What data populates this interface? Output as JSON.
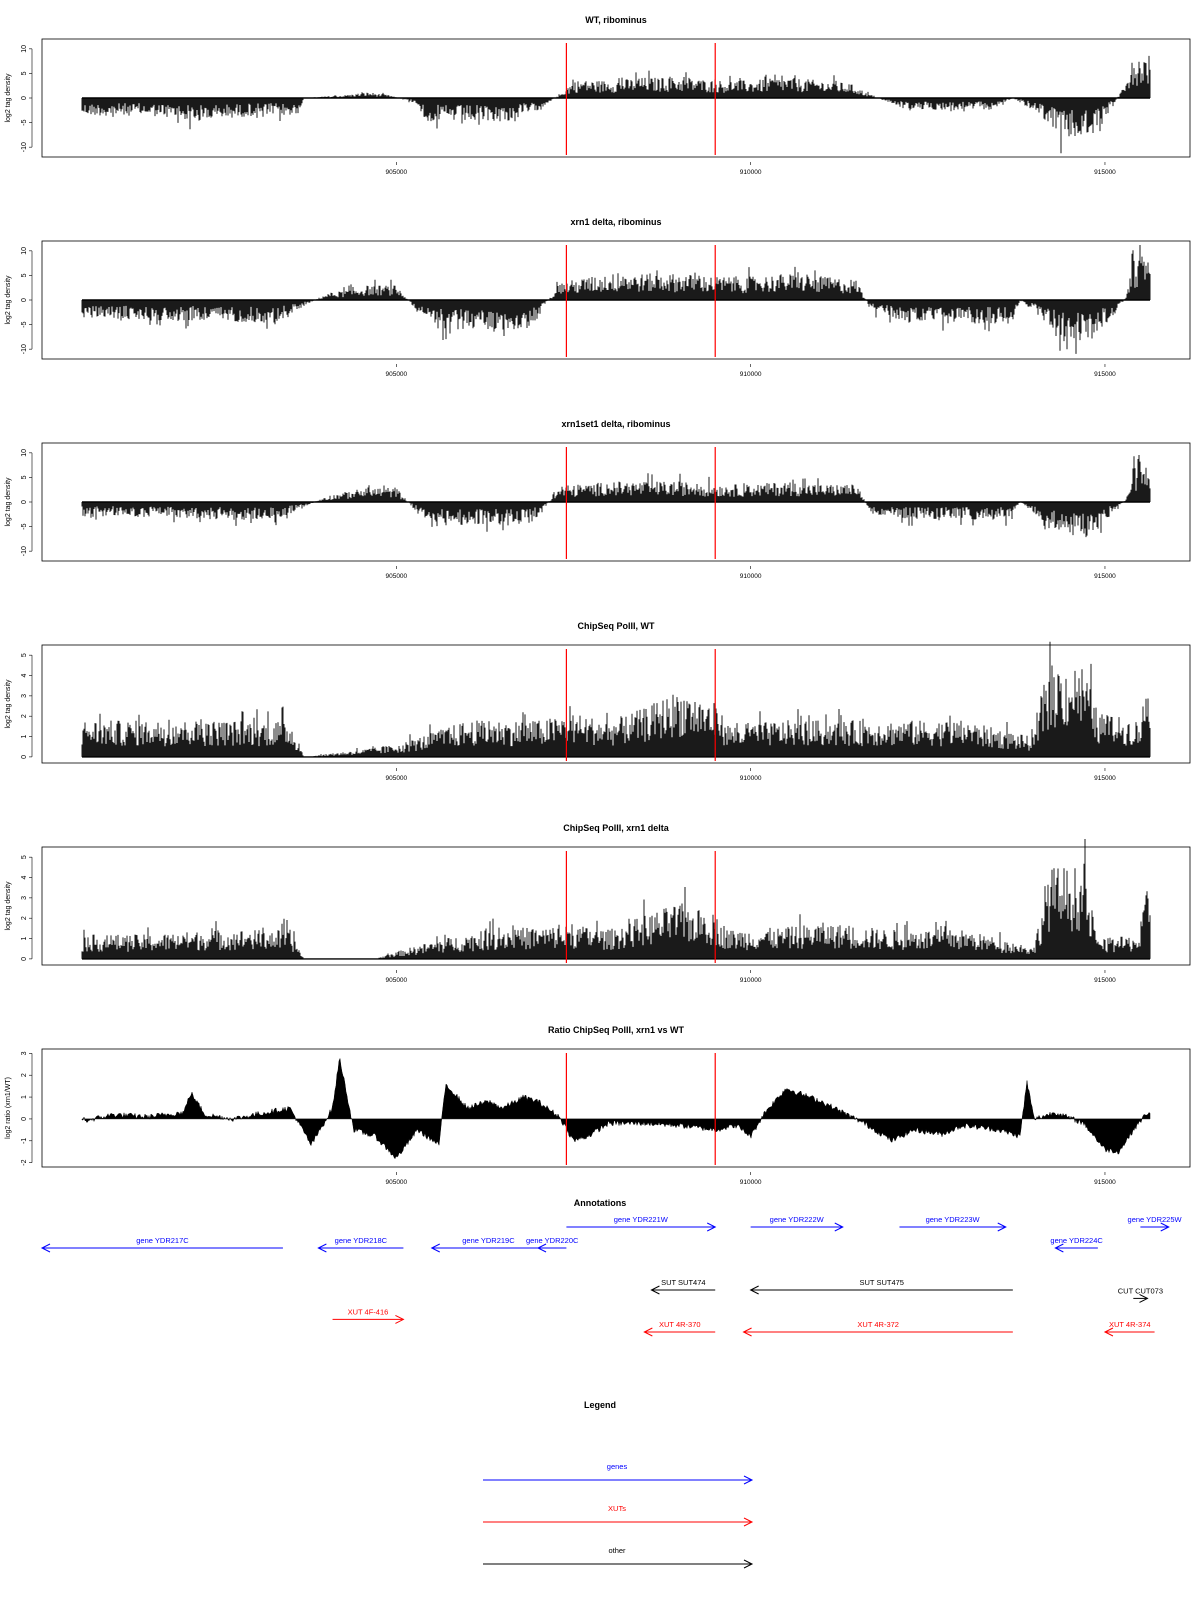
{
  "colors": {
    "gene": "#0000ff",
    "xut": "#ff0000",
    "other": "#000000",
    "marker": "#ff0000",
    "signal": "#000000"
  },
  "chart_data": [
    {
      "type": "bar",
      "title": "WT, ribominus",
      "ylabel": "log2 tag density",
      "xlim": [
        900000,
        916200
      ],
      "ylim": [
        -12,
        12
      ],
      "yticks": [
        -10,
        -5,
        0,
        5,
        10
      ],
      "ytick_labels": [
        "-10",
        "-5",
        "0",
        "5",
        "10"
      ],
      "xticks": [
        905000,
        910000,
        915000
      ],
      "xtick_labels": [
        "905000",
        "910000",
        "915000"
      ],
      "markers": [
        907400,
        909500
      ],
      "profile": [
        [
          900000,
          0
        ],
        [
          900600,
          -3
        ],
        [
          901500,
          -3
        ],
        [
          902200,
          -4
        ],
        [
          903000,
          -3
        ],
        [
          903600,
          -3
        ],
        [
          903700,
          0
        ],
        [
          904300,
          0.5
        ],
        [
          904600,
          1
        ],
        [
          904900,
          0.5
        ],
        [
          905300,
          -1
        ],
        [
          905400,
          -4
        ],
        [
          906000,
          -4
        ],
        [
          906600,
          -4
        ],
        [
          907000,
          -2
        ],
        [
          907300,
          0.5
        ],
        [
          907500,
          3
        ],
        [
          908000,
          3
        ],
        [
          908500,
          3.5
        ],
        [
          909000,
          3.5
        ],
        [
          909500,
          3
        ],
        [
          910000,
          3
        ],
        [
          910500,
          3.5
        ],
        [
          911000,
          3
        ],
        [
          911400,
          2.5
        ],
        [
          911700,
          0.5
        ],
        [
          912200,
          -2
        ],
        [
          912800,
          -2
        ],
        [
          913400,
          -2
        ],
        [
          913700,
          0
        ],
        [
          914100,
          -3
        ],
        [
          914400,
          -7
        ],
        [
          914800,
          -7
        ],
        [
          915000,
          -3
        ],
        [
          915200,
          0.5
        ],
        [
          915400,
          7
        ],
        [
          915900,
          8
        ],
        [
          916000,
          0
        ]
      ]
    },
    {
      "type": "bar",
      "title": "xrn1 delta, ribominus",
      "ylabel": "log2 tag density",
      "xlim": [
        900000,
        916200
      ],
      "ylim": [
        -12,
        12
      ],
      "yticks": [
        -10,
        -5,
        0,
        5,
        10
      ],
      "ytick_labels": [
        "-10",
        "-5",
        "0",
        "5",
        "10"
      ],
      "xticks": [
        905000,
        910000,
        915000
      ],
      "xtick_labels": [
        "905000",
        "910000",
        "915000"
      ],
      "markers": [
        907400,
        909500
      ],
      "profile": [
        [
          900000,
          0
        ],
        [
          900600,
          -3
        ],
        [
          901500,
          -3.5
        ],
        [
          902500,
          -3.5
        ],
        [
          903300,
          -4
        ],
        [
          903700,
          -1
        ],
        [
          904000,
          1
        ],
        [
          904600,
          2.5
        ],
        [
          905000,
          2.5
        ],
        [
          905300,
          -2
        ],
        [
          905600,
          -5
        ],
        [
          906300,
          -5
        ],
        [
          906900,
          -5
        ],
        [
          907300,
          3
        ],
        [
          908000,
          4.5
        ],
        [
          908500,
          4.5
        ],
        [
          909000,
          4.5
        ],
        [
          909500,
          4
        ],
        [
          910000,
          4
        ],
        [
          910500,
          4.5
        ],
        [
          911000,
          4
        ],
        [
          911500,
          3.5
        ],
        [
          911700,
          -2
        ],
        [
          912300,
          -4
        ],
        [
          913000,
          -4
        ],
        [
          913700,
          -4
        ],
        [
          913800,
          0
        ],
        [
          914100,
          -3
        ],
        [
          914400,
          -7
        ],
        [
          914800,
          -7
        ],
        [
          915100,
          -3
        ],
        [
          915300,
          0.5
        ],
        [
          915400,
          7
        ],
        [
          915900,
          9
        ],
        [
          916000,
          0
        ]
      ]
    },
    {
      "type": "bar",
      "title": "xrn1set1 delta, ribominus",
      "ylabel": "log2 tag density",
      "xlim": [
        900000,
        916200
      ],
      "ylim": [
        -12,
        12
      ],
      "yticks": [
        -10,
        -5,
        0,
        5,
        10
      ],
      "ytick_labels": [
        "-10",
        "-5",
        "0",
        "5",
        "10"
      ],
      "xticks": [
        905000,
        910000,
        915000
      ],
      "xtick_labels": [
        "905000",
        "910000",
        "915000"
      ],
      "markers": [
        907400,
        909500
      ],
      "profile": [
        [
          900000,
          0
        ],
        [
          900600,
          -2.5
        ],
        [
          901500,
          -2.5
        ],
        [
          902500,
          -3
        ],
        [
          903300,
          -3
        ],
        [
          903700,
          -1
        ],
        [
          904000,
          1
        ],
        [
          904600,
          2.5
        ],
        [
          905000,
          2.5
        ],
        [
          905300,
          -2
        ],
        [
          905600,
          -4
        ],
        [
          906300,
          -4
        ],
        [
          906900,
          -4
        ],
        [
          907300,
          2.5
        ],
        [
          908000,
          3.5
        ],
        [
          908500,
          3.5
        ],
        [
          909000,
          3.5
        ],
        [
          909500,
          3
        ],
        [
          910000,
          3
        ],
        [
          910500,
          3.5
        ],
        [
          911000,
          3
        ],
        [
          911500,
          3
        ],
        [
          911700,
          -2
        ],
        [
          912300,
          -3
        ],
        [
          913000,
          -3
        ],
        [
          913700,
          -3
        ],
        [
          913800,
          0
        ],
        [
          914100,
          -3
        ],
        [
          914400,
          -6
        ],
        [
          914800,
          -6
        ],
        [
          915100,
          -2
        ],
        [
          915300,
          0.5
        ],
        [
          915400,
          6
        ],
        [
          915900,
          7
        ],
        [
          916000,
          0
        ]
      ]
    },
    {
      "type": "bar",
      "title": "ChipSeq PolII, WT",
      "ylabel": "log2 tag density",
      "xlim": [
        900000,
        916200
      ],
      "ylim": [
        -0.3,
        5.5
      ],
      "yticks": [
        0,
        1,
        2,
        3,
        4,
        5
      ],
      "ytick_labels": [
        "0",
        "1",
        "2",
        "3",
        "4",
        "5"
      ],
      "xticks": [
        905000,
        910000,
        915000
      ],
      "xtick_labels": [
        "905000",
        "910000",
        "915000"
      ],
      "markers": [
        907400,
        909500
      ],
      "profile": [
        [
          900000,
          0
        ],
        [
          900600,
          1.5
        ],
        [
          901500,
          1.5
        ],
        [
          902500,
          1.5
        ],
        [
          903500,
          1.5
        ],
        [
          903700,
          0
        ],
        [
          904500,
          0.3
        ],
        [
          905000,
          0.5
        ],
        [
          905500,
          1
        ],
        [
          906000,
          1.5
        ],
        [
          906500,
          1.5
        ],
        [
          907000,
          1.5
        ],
        [
          907500,
          1.8
        ],
        [
          908000,
          1.5
        ],
        [
          908500,
          2
        ],
        [
          909000,
          2.8
        ],
        [
          909500,
          2.2
        ],
        [
          909700,
          1.3
        ],
        [
          910500,
          1.5
        ],
        [
          911000,
          1.5
        ],
        [
          912000,
          1.5
        ],
        [
          913000,
          1.5
        ],
        [
          914000,
          0.8
        ],
        [
          914200,
          3.8
        ],
        [
          914700,
          3.8
        ],
        [
          914900,
          1.8
        ],
        [
          915500,
          1.5
        ],
        [
          915600,
          3.5
        ],
        [
          916000,
          4.5
        ]
      ]
    },
    {
      "type": "bar",
      "title": "ChipSeq PolII, xrn1 delta",
      "ylabel": "log2 tag density",
      "xlim": [
        900000,
        916200
      ],
      "ylim": [
        -0.3,
        5.5
      ],
      "yticks": [
        0,
        1,
        2,
        3,
        4,
        5
      ],
      "ytick_labels": [
        "0",
        "1",
        "2",
        "3",
        "4",
        "5"
      ],
      "xticks": [
        905000,
        910000,
        915000
      ],
      "xtick_labels": [
        "905000",
        "910000",
        "915000"
      ],
      "markers": [
        907400,
        909500
      ],
      "profile": [
        [
          900000,
          0
        ],
        [
          900600,
          1
        ],
        [
          901500,
          1
        ],
        [
          902500,
          1.2
        ],
        [
          903500,
          1.2
        ],
        [
          903700,
          0
        ],
        [
          904700,
          0
        ],
        [
          905000,
          0.3
        ],
        [
          905600,
          0.8
        ],
        [
          906500,
          1.3
        ],
        [
          907000,
          1.3
        ],
        [
          907500,
          1.4
        ],
        [
          908000,
          1.2
        ],
        [
          908500,
          1.8
        ],
        [
          909000,
          2.3
        ],
        [
          909500,
          1.8
        ],
        [
          909700,
          1.2
        ],
        [
          910500,
          1.3
        ],
        [
          911000,
          1.5
        ],
        [
          912000,
          1.2
        ],
        [
          913000,
          1.2
        ],
        [
          914000,
          0.5
        ],
        [
          914200,
          3.8
        ],
        [
          914700,
          3.8
        ],
        [
          914900,
          0.8
        ],
        [
          915500,
          1
        ],
        [
          915600,
          3.5
        ],
        [
          916000,
          4.3
        ]
      ]
    },
    {
      "type": "area",
      "title": "Ratio ChipSeq PolII, xrn1 vs WT",
      "ylabel": "log2 ratio (xrn1/WT)",
      "xlim": [
        900000,
        916200
      ],
      "ylim": [
        -2.2,
        3.2
      ],
      "yticks": [
        -2,
        -1,
        0,
        1,
        2,
        3
      ],
      "ytick_labels": [
        "-2",
        "-1",
        "0",
        "1",
        "2",
        "3"
      ],
      "xticks": [
        905000,
        910000,
        915000
      ],
      "xtick_labels": [
        "905000",
        "910000",
        "915000"
      ],
      "markers": [
        907400,
        909500
      ],
      "profile": [
        [
          900600,
          -0.1
        ],
        [
          901000,
          0.2
        ],
        [
          901500,
          0.1
        ],
        [
          902000,
          0.3
        ],
        [
          902100,
          1.2
        ],
        [
          902300,
          0.2
        ],
        [
          902700,
          0
        ],
        [
          903000,
          0.2
        ],
        [
          903500,
          0.5
        ],
        [
          903800,
          -1.2
        ],
        [
          904100,
          0.5
        ],
        [
          904200,
          2.8
        ],
        [
          904400,
          -0.5
        ],
        [
          904700,
          -0.8
        ],
        [
          905000,
          -1.8
        ],
        [
          905300,
          -0.5
        ],
        [
          905600,
          -1.2
        ],
        [
          905700,
          1.6
        ],
        [
          906000,
          0.5
        ],
        [
          906300,
          0.8
        ],
        [
          906500,
          0.5
        ],
        [
          906800,
          1
        ],
        [
          907000,
          0.8
        ],
        [
          907300,
          0.1
        ],
        [
          907500,
          -1
        ],
        [
          907700,
          -0.8
        ],
        [
          908000,
          -0.2
        ],
        [
          908500,
          -0.2
        ],
        [
          909000,
          -0.3
        ],
        [
          909500,
          -0.5
        ],
        [
          909800,
          -0.3
        ],
        [
          910000,
          -0.8
        ],
        [
          910200,
          0.3
        ],
        [
          910500,
          1.4
        ],
        [
          911000,
          0.8
        ],
        [
          911300,
          0.3
        ],
        [
          911600,
          -0.2
        ],
        [
          912000,
          -1
        ],
        [
          912300,
          -0.5
        ],
        [
          912700,
          -0.7
        ],
        [
          913000,
          -0.3
        ],
        [
          913500,
          -0.5
        ],
        [
          913800,
          -0.8
        ],
        [
          913900,
          1.7
        ],
        [
          914000,
          0
        ],
        [
          914300,
          0.3
        ],
        [
          914700,
          -0.2
        ],
        [
          915000,
          -1.4
        ],
        [
          915200,
          -1.5
        ],
        [
          915400,
          -0.5
        ],
        [
          915600,
          0.3
        ],
        [
          916000,
          0.3
        ]
      ]
    }
  ],
  "annotations": {
    "title": "Annotations",
    "features": [
      {
        "label": "gene YDR217C",
        "type": "gene",
        "start": 900000,
        "end": 903400,
        "strand": "-",
        "row": 0
      },
      {
        "label": "gene YDR218C",
        "type": "gene",
        "start": 903900,
        "end": 905100,
        "strand": "-",
        "row": 0
      },
      {
        "label": "gene YDR219C",
        "type": "gene",
        "start": 905500,
        "end": 907100,
        "strand": "-",
        "row": 0
      },
      {
        "label": "gene YDR220C",
        "type": "gene",
        "start": 907000,
        "end": 907400,
        "strand": "-",
        "row": 0
      },
      {
        "label": "gene YDR221W",
        "type": "gene",
        "start": 907400,
        "end": 909500,
        "strand": "+",
        "row": -1
      },
      {
        "label": "gene YDR222W",
        "type": "gene",
        "start": 910000,
        "end": 911300,
        "strand": "+",
        "row": -1
      },
      {
        "label": "gene YDR223W",
        "type": "gene",
        "start": 912100,
        "end": 913600,
        "strand": "+",
        "row": -1
      },
      {
        "label": "gene YDR224C",
        "type": "gene",
        "start": 914300,
        "end": 914900,
        "strand": "-",
        "row": 0
      },
      {
        "label": "gene YDR225W",
        "type": "gene",
        "start": 915500,
        "end": 915900,
        "strand": "+",
        "row": -1
      },
      {
        "label": "SUT SUT474",
        "type": "other",
        "start": 908600,
        "end": 909500,
        "strand": "-",
        "row": 2
      },
      {
        "label": "SUT SUT475",
        "type": "other",
        "start": 910000,
        "end": 913700,
        "strand": "-",
        "row": 2
      },
      {
        "label": "CUT CUT073",
        "type": "other",
        "start": 915400,
        "end": 915600,
        "strand": "+",
        "row": 2.4
      },
      {
        "label": "XUT 4F-416",
        "type": "xut",
        "start": 904100,
        "end": 905100,
        "strand": "+",
        "row": 3.4
      },
      {
        "label": "XUT 4R-370",
        "type": "xut",
        "start": 908500,
        "end": 909500,
        "strand": "-",
        "row": 4
      },
      {
        "label": "XUT 4R-372",
        "type": "xut",
        "start": 909900,
        "end": 913700,
        "strand": "-",
        "row": 4
      },
      {
        "label": "XUT 4R-374",
        "type": "xut",
        "start": 915000,
        "end": 915700,
        "strand": "-",
        "row": 4
      }
    ]
  },
  "legend": {
    "title": "Legend",
    "items": [
      {
        "label": "genes",
        "type": "gene"
      },
      {
        "label": "XUTs",
        "type": "xut"
      },
      {
        "label": "other",
        "type": "other"
      }
    ]
  }
}
